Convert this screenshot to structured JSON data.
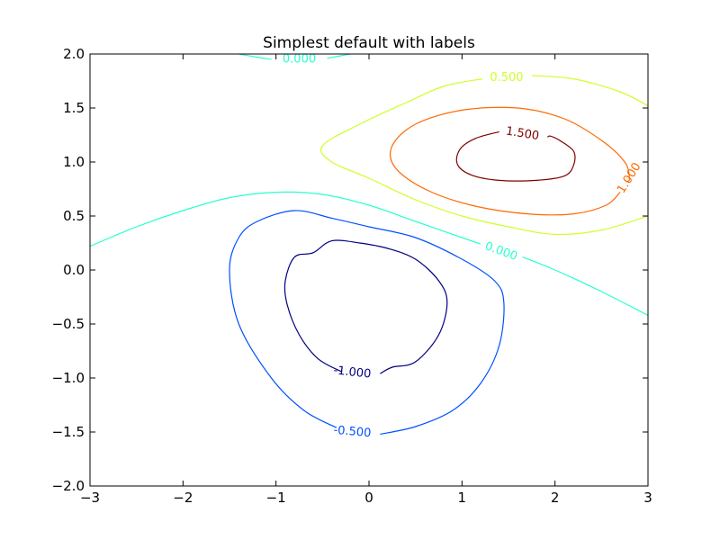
{
  "chart_data": {
    "type": "contour",
    "title": "Simplest default with labels",
    "xlabel": "",
    "ylabel": "",
    "xlim": [
      -3,
      3
    ],
    "ylim": [
      -2,
      2
    ],
    "x_ticks": [
      "−3",
      "−2",
      "−1",
      "0",
      "1",
      "2",
      "3"
    ],
    "y_ticks": [
      "−2.0",
      "−1.5",
      "−1.0",
      "−0.5",
      "0.0",
      "0.5",
      "1.0",
      "1.5",
      "2.0"
    ],
    "grid": false,
    "levels": [
      {
        "level": -1.0,
        "color": "#00007f",
        "paths": [
          [
            [
              -0.3,
              -0.94
            ],
            [
              -0.55,
              -0.82
            ],
            [
              -0.75,
              -0.6
            ],
            [
              -0.88,
              -0.32
            ],
            [
              -0.9,
              -0.1
            ],
            [
              -0.8,
              0.12
            ],
            [
              -0.6,
              0.16
            ],
            [
              -0.4,
              0.27
            ],
            [
              -0.1,
              0.25
            ],
            [
              0.2,
              0.2
            ],
            [
              0.5,
              0.1
            ],
            [
              0.75,
              -0.1
            ],
            [
              0.84,
              -0.3
            ],
            [
              0.75,
              -0.6
            ],
            [
              0.5,
              -0.85
            ],
            [
              0.25,
              -0.9
            ],
            [
              0.12,
              -0.96
            ]
          ]
        ],
        "labels": [
          {
            "text": "-1.000",
            "x": -0.18,
            "y": -0.95,
            "angle": 6
          }
        ]
      },
      {
        "level": -0.5,
        "color": "#0050ff",
        "paths": [
          [
            [
              -0.35,
              -1.46
            ],
            [
              -0.7,
              -1.3
            ],
            [
              -1.05,
              -1.0
            ],
            [
              -1.4,
              -0.5
            ],
            [
              -1.5,
              0.0
            ],
            [
              -1.4,
              0.3
            ],
            [
              -1.2,
              0.45
            ],
            [
              -0.8,
              0.55
            ],
            [
              -0.4,
              0.48
            ],
            [
              0.0,
              0.4
            ],
            [
              0.5,
              0.3
            ],
            [
              1.0,
              0.1
            ],
            [
              1.35,
              -0.1
            ],
            [
              1.45,
              -0.3
            ],
            [
              1.4,
              -0.7
            ],
            [
              1.2,
              -1.05
            ],
            [
              0.9,
              -1.3
            ],
            [
              0.5,
              -1.45
            ],
            [
              0.12,
              -1.52
            ]
          ]
        ],
        "labels": [
          {
            "text": "-0.500",
            "x": -0.18,
            "y": -1.5,
            "angle": 5
          }
        ]
      },
      {
        "level": 0.0,
        "color": "#29ffce",
        "paths": [
          [
            [
              -3.0,
              0.22
            ],
            [
              -2.5,
              0.4
            ],
            [
              -2.0,
              0.55
            ],
            [
              -1.5,
              0.67
            ],
            [
              -1.0,
              0.72
            ],
            [
              -0.5,
              0.7
            ],
            [
              0.0,
              0.6
            ],
            [
              0.5,
              0.45
            ],
            [
              1.0,
              0.3
            ],
            [
              1.2,
              0.24
            ]
          ],
          [
            [
              1.65,
              0.12
            ],
            [
              2.0,
              0.0
            ],
            [
              2.5,
              -0.2
            ],
            [
              3.0,
              -0.42
            ]
          ],
          [
            [
              -1.4,
              2.0
            ],
            [
              -1.2,
              1.97
            ],
            [
              -1.05,
              1.95
            ]
          ],
          [
            [
              -0.45,
              1.96
            ],
            [
              -0.2,
              2.0
            ]
          ]
        ],
        "labels": [
          {
            "text": "0.000",
            "x": 1.42,
            "y": 0.17,
            "angle": 20
          },
          {
            "text": "0.000",
            "x": -0.75,
            "y": 1.95,
            "angle": 0
          }
        ]
      },
      {
        "level": 0.5,
        "color": "#ceff29",
        "paths": [
          [
            [
              1.22,
              1.77
            ],
            [
              0.8,
              1.7
            ],
            [
              0.4,
              1.55
            ],
            [
              -0.1,
              1.35
            ],
            [
              -0.5,
              1.15
            ],
            [
              -0.4,
              1.0
            ],
            [
              0.0,
              0.85
            ],
            [
              0.5,
              0.65
            ],
            [
              1.0,
              0.5
            ],
            [
              1.5,
              0.4
            ],
            [
              2.0,
              0.33
            ],
            [
              2.5,
              0.37
            ],
            [
              3.0,
              0.5
            ]
          ],
          [
            [
              1.75,
              1.8
            ],
            [
              2.2,
              1.77
            ],
            [
              2.7,
              1.65
            ],
            [
              3.0,
              1.52
            ]
          ]
        ],
        "labels": [
          {
            "text": "0.500",
            "x": 1.48,
            "y": 1.78,
            "angle": 0
          }
        ]
      },
      {
        "level": 1.0,
        "color": "#ff6800",
        "paths": [
          [
            [
              2.7,
              0.72
            ],
            [
              2.55,
              0.6
            ],
            [
              2.2,
              0.52
            ],
            [
              1.7,
              0.52
            ],
            [
              1.1,
              0.6
            ],
            [
              0.6,
              0.75
            ],
            [
              0.28,
              0.95
            ],
            [
              0.25,
              1.15
            ],
            [
              0.5,
              1.35
            ],
            [
              1.0,
              1.48
            ],
            [
              1.6,
              1.5
            ],
            [
              2.1,
              1.4
            ],
            [
              2.5,
              1.2
            ],
            [
              2.75,
              1.0
            ],
            [
              2.8,
              0.85
            ],
            [
              2.78,
              0.82
            ]
          ]
        ],
        "labels": [
          {
            "text": "1.000",
            "x": 2.8,
            "y": 0.85,
            "angle": -58
          }
        ]
      },
      {
        "level": 1.5,
        "color": "#7f0000",
        "paths": [
          [
            [
              1.4,
              1.28
            ],
            [
              1.15,
              1.22
            ],
            [
              0.98,
              1.12
            ],
            [
              0.95,
              0.98
            ],
            [
              1.1,
              0.88
            ],
            [
              1.4,
              0.83
            ],
            [
              1.8,
              0.83
            ],
            [
              2.1,
              0.87
            ],
            [
              2.2,
              0.97
            ],
            [
              2.2,
              1.1
            ],
            [
              2.05,
              1.2
            ],
            [
              1.95,
              1.24
            ],
            [
              1.92,
              1.23
            ]
          ]
        ],
        "labels": [
          {
            "text": "1.500",
            "x": 1.65,
            "y": 1.26,
            "angle": 9
          }
        ]
      }
    ]
  }
}
